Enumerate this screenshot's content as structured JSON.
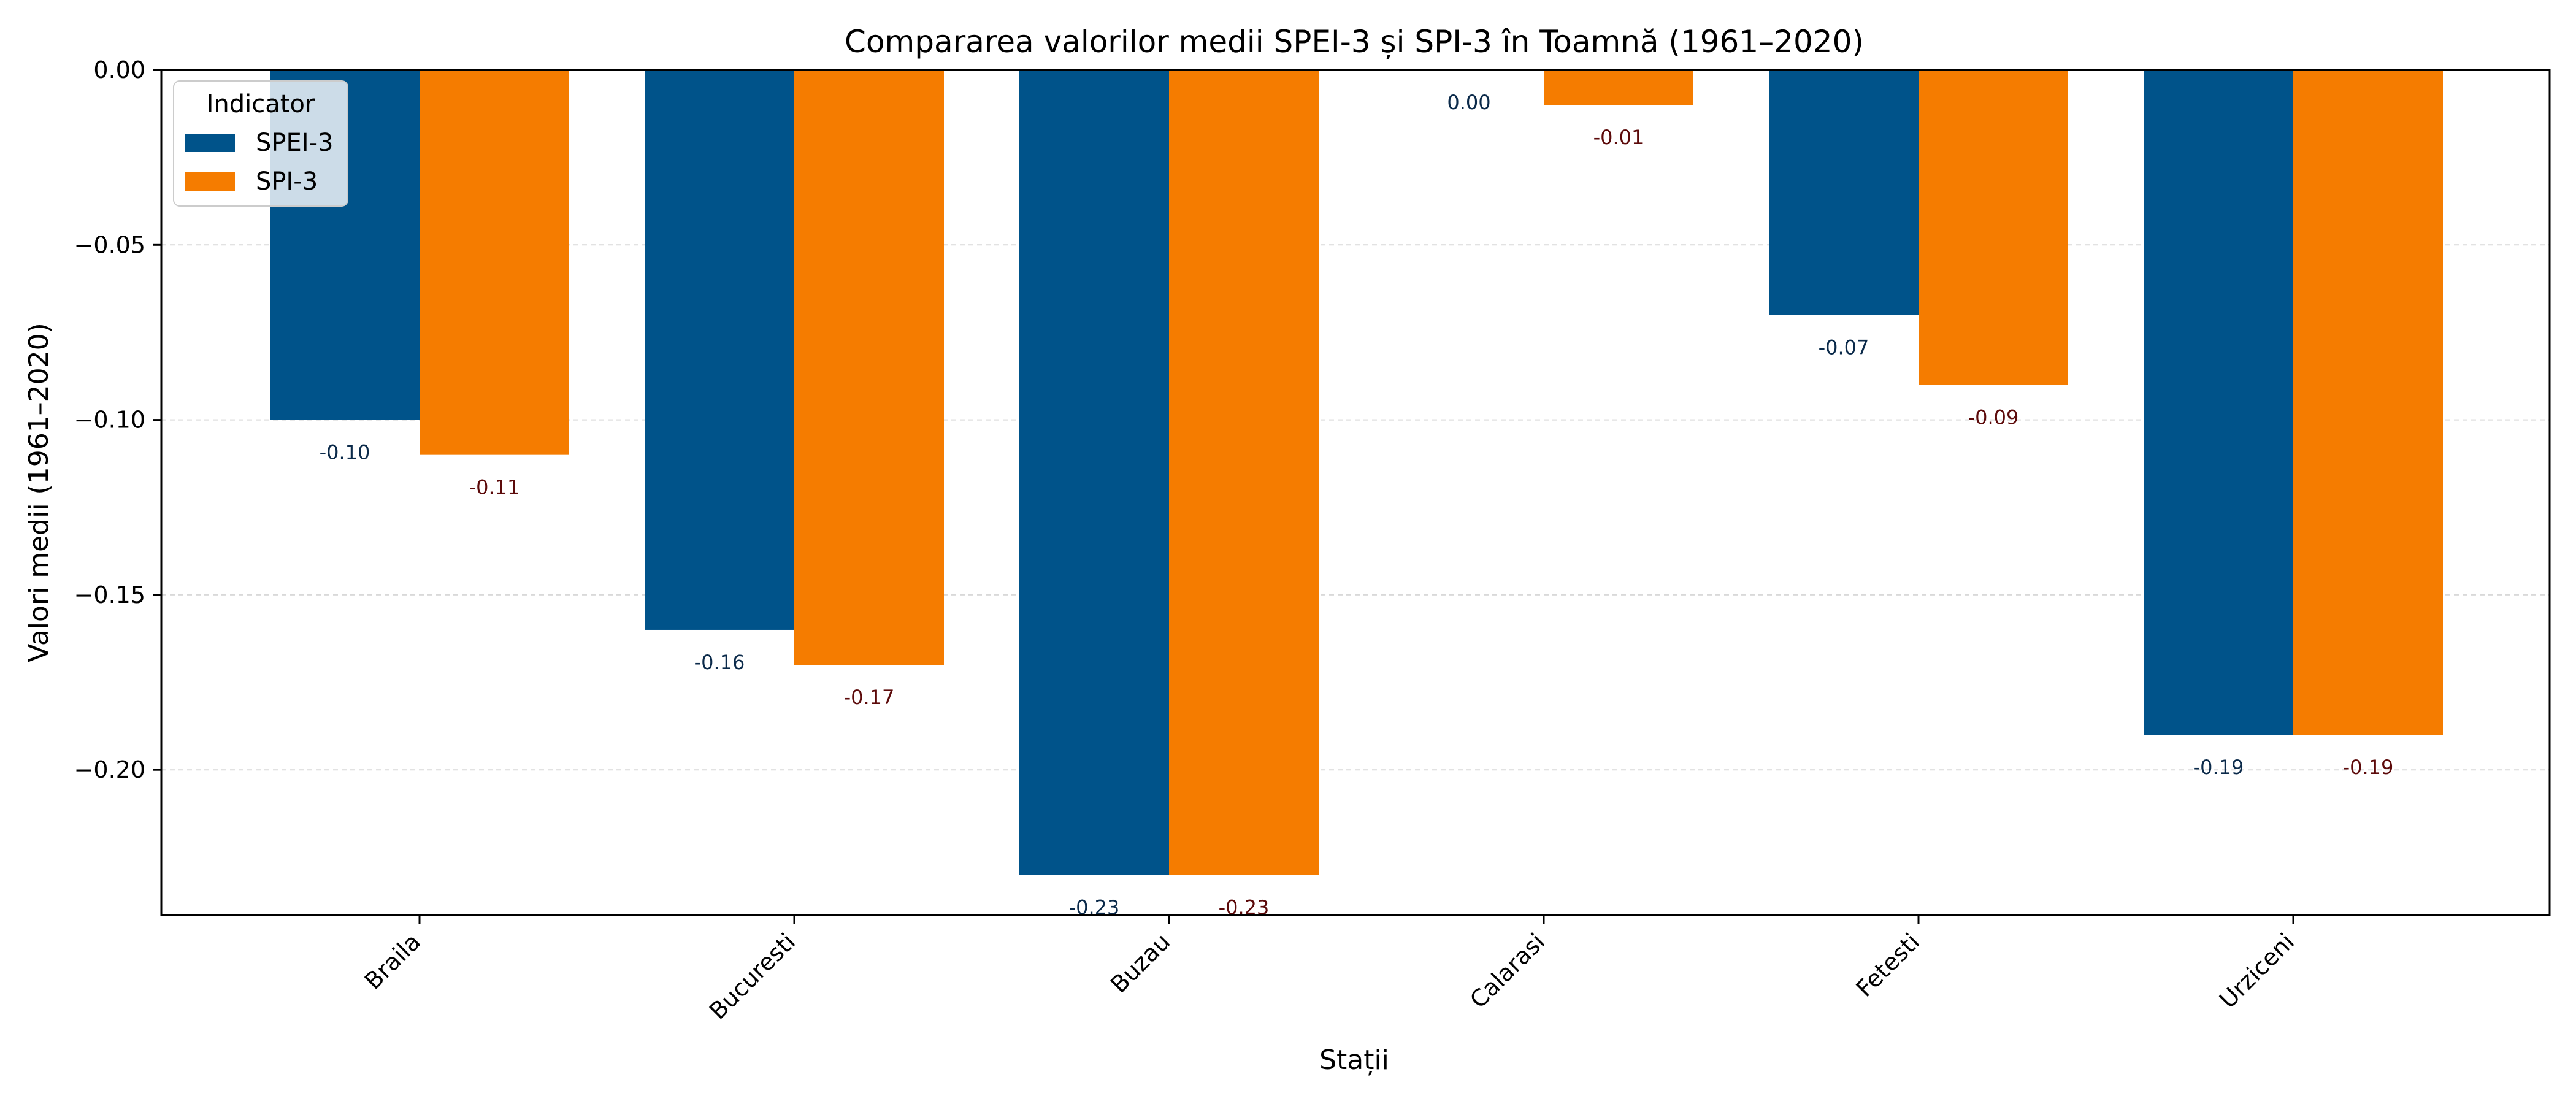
{
  "chart_data": {
    "type": "bar",
    "title": "Compararea valorilor medii SPEI-3 și SPI-3 în Toamnă (1961–2020)",
    "xlabel": "Stații",
    "ylabel": "Valori medii (1961–2020)",
    "categories": [
      "Braila",
      "Bucuresti",
      "Buzau",
      "Calarasi",
      "Fetesti",
      "Urziceni"
    ],
    "series": [
      {
        "name": "SPEI-3",
        "color": "#00538a",
        "label_color": "#0b2a4a",
        "values": [
          -0.1,
          -0.16,
          -0.23,
          0.0,
          -0.07,
          -0.19
        ],
        "labels": [
          "-0.10",
          "-0.16",
          "-0.23",
          "0.00",
          "-0.07",
          "-0.19"
        ]
      },
      {
        "name": "SPI-3",
        "color": "#f57c00",
        "label_color": "#5c0a0a",
        "values": [
          -0.11,
          -0.17,
          -0.23,
          -0.01,
          -0.09,
          -0.19
        ],
        "labels": [
          "-0.11",
          "-0.17",
          "-0.23",
          "-0.01",
          "-0.09",
          "-0.19"
        ]
      }
    ],
    "ylim": [
      -0.2415,
      0.0
    ],
    "yticks": [
      0.0,
      -0.05,
      -0.1,
      -0.15,
      -0.2
    ],
    "ytick_labels": [
      "0.00",
      "−0.05",
      "−0.10",
      "−0.15",
      "−0.20"
    ],
    "grid": "horizontal dashed",
    "legend": {
      "title": "Indicator",
      "placement": "top-left"
    }
  }
}
